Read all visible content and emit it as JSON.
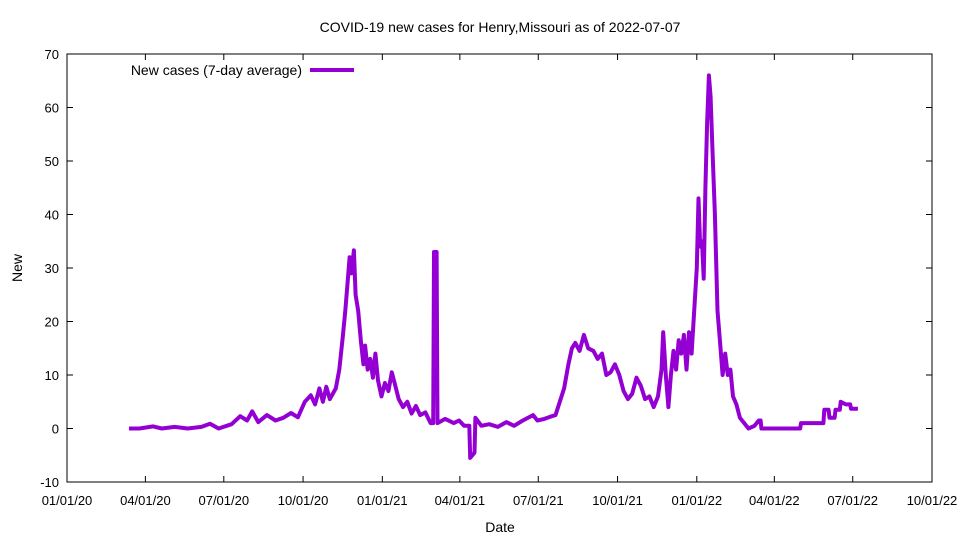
{
  "chart_data": {
    "type": "line",
    "title": "COVID-19 new cases for Henry,Missouri as of 2022-07-07",
    "xlabel": "Date",
    "ylabel": "New",
    "xlim": [
      "2020-01-01",
      "2022-10-01"
    ],
    "ylim": [
      -10,
      70
    ],
    "x_ticks": [
      {
        "date": "2020-01-01",
        "label": "01/01/20"
      },
      {
        "date": "2020-04-01",
        "label": "04/01/20"
      },
      {
        "date": "2020-07-01",
        "label": "07/01/20"
      },
      {
        "date": "2020-10-01",
        "label": "10/01/20"
      },
      {
        "date": "2021-01-01",
        "label": "01/01/21"
      },
      {
        "date": "2021-04-01",
        "label": "04/01/21"
      },
      {
        "date": "2021-07-01",
        "label": "07/01/21"
      },
      {
        "date": "2021-10-01",
        "label": "10/01/21"
      },
      {
        "date": "2022-01-01",
        "label": "01/01/22"
      },
      {
        "date": "2022-04-01",
        "label": "04/01/22"
      },
      {
        "date": "2022-07-01",
        "label": "07/01/22"
      },
      {
        "date": "2022-10-01",
        "label": "10/01/22"
      }
    ],
    "y_ticks": [
      -10,
      0,
      10,
      20,
      30,
      40,
      50,
      60,
      70
    ],
    "grid": false,
    "legend_position": "top-left",
    "series": [
      {
        "name": "New cases (7-day average)",
        "color": "#9400d3",
        "points": [
          [
            "2020-03-13",
            0.0
          ],
          [
            "2020-03-25",
            0.0
          ],
          [
            "2020-04-10",
            0.4
          ],
          [
            "2020-04-20",
            0.0
          ],
          [
            "2020-05-05",
            0.3
          ],
          [
            "2020-05-20",
            0.0
          ],
          [
            "2020-06-05",
            0.3
          ],
          [
            "2020-06-15",
            0.9
          ],
          [
            "2020-06-25",
            0.0
          ],
          [
            "2020-07-10",
            0.8
          ],
          [
            "2020-07-20",
            2.3
          ],
          [
            "2020-07-28",
            1.5
          ],
          [
            "2020-08-03",
            3.2
          ],
          [
            "2020-08-10",
            1.2
          ],
          [
            "2020-08-20",
            2.5
          ],
          [
            "2020-08-30",
            1.5
          ],
          [
            "2020-09-08",
            2.0
          ],
          [
            "2020-09-17",
            2.9
          ],
          [
            "2020-09-25",
            2.1
          ],
          [
            "2020-10-03",
            5.0
          ],
          [
            "2020-10-10",
            6.2
          ],
          [
            "2020-10-15",
            4.5
          ],
          [
            "2020-10-20",
            7.5
          ],
          [
            "2020-10-24",
            5.0
          ],
          [
            "2020-10-28",
            7.8
          ],
          [
            "2020-11-01",
            5.5
          ],
          [
            "2020-11-08",
            7.5
          ],
          [
            "2020-11-12",
            11.0
          ],
          [
            "2020-11-16",
            17.0
          ],
          [
            "2020-11-19",
            22.0
          ],
          [
            "2020-11-22",
            28.0
          ],
          [
            "2020-11-24",
            32.0
          ],
          [
            "2020-11-26",
            29.0
          ],
          [
            "2020-11-29",
            33.3
          ],
          [
            "2020-12-01",
            25.0
          ],
          [
            "2020-12-04",
            22.0
          ],
          [
            "2020-12-07",
            16.5
          ],
          [
            "2020-12-10",
            12.0
          ],
          [
            "2020-12-12",
            15.5
          ],
          [
            "2020-12-15",
            11.0
          ],
          [
            "2020-12-18",
            13.0
          ],
          [
            "2020-12-21",
            9.5
          ],
          [
            "2020-12-24",
            14.0
          ],
          [
            "2020-12-27",
            9.0
          ],
          [
            "2020-12-31",
            6.0
          ],
          [
            "2021-01-04",
            8.5
          ],
          [
            "2021-01-08",
            7.0
          ],
          [
            "2021-01-12",
            10.5
          ],
          [
            "2021-01-16",
            8.0
          ],
          [
            "2021-01-20",
            5.5
          ],
          [
            "2021-01-25",
            4.0
          ],
          [
            "2021-01-30",
            5.0
          ],
          [
            "2021-02-04",
            2.8
          ],
          [
            "2021-02-09",
            4.2
          ],
          [
            "2021-02-14",
            2.5
          ],
          [
            "2021-02-20",
            3.0
          ],
          [
            "2021-02-26",
            1.0
          ],
          [
            "2021-03-01",
            1.0
          ],
          [
            "2021-03-02",
            33.0
          ],
          [
            "2021-03-05",
            33.0
          ],
          [
            "2021-03-06",
            1.0
          ],
          [
            "2021-03-15",
            1.8
          ],
          [
            "2021-03-25",
            1.0
          ],
          [
            "2021-03-31",
            1.5
          ],
          [
            "2021-04-06",
            0.5
          ],
          [
            "2021-04-12",
            0.5
          ],
          [
            "2021-04-13",
            -5.5
          ],
          [
            "2021-04-18",
            -4.5
          ],
          [
            "2021-04-19",
            2.0
          ],
          [
            "2021-04-26",
            0.5
          ],
          [
            "2021-05-05",
            0.8
          ],
          [
            "2021-05-15",
            0.3
          ],
          [
            "2021-05-25",
            1.2
          ],
          [
            "2021-06-03",
            0.5
          ],
          [
            "2021-06-13",
            1.5
          ],
          [
            "2021-06-25",
            2.5
          ],
          [
            "2021-06-30",
            1.5
          ],
          [
            "2021-07-08",
            1.8
          ],
          [
            "2021-07-15",
            2.2
          ],
          [
            "2021-07-21",
            2.5
          ],
          [
            "2021-07-26",
            5.0
          ],
          [
            "2021-07-31",
            7.5
          ],
          [
            "2021-08-05",
            12.0
          ],
          [
            "2021-08-09",
            15.0
          ],
          [
            "2021-08-13",
            16.0
          ],
          [
            "2021-08-18",
            14.5
          ],
          [
            "2021-08-23",
            17.5
          ],
          [
            "2021-08-28",
            15.0
          ],
          [
            "2021-09-03",
            14.5
          ],
          [
            "2021-09-08",
            13.0
          ],
          [
            "2021-09-13",
            14.0
          ],
          [
            "2021-09-18",
            10.0
          ],
          [
            "2021-09-23",
            10.5
          ],
          [
            "2021-09-28",
            12.0
          ],
          [
            "2021-10-03",
            10.0
          ],
          [
            "2021-10-08",
            7.0
          ],
          [
            "2021-10-13",
            5.5
          ],
          [
            "2021-10-18",
            6.5
          ],
          [
            "2021-10-23",
            9.5
          ],
          [
            "2021-10-28",
            8.0
          ],
          [
            "2021-11-02",
            5.5
          ],
          [
            "2021-11-07",
            6.0
          ],
          [
            "2021-11-12",
            4.0
          ],
          [
            "2021-11-17",
            6.0
          ],
          [
            "2021-11-21",
            11.0
          ],
          [
            "2021-11-23",
            18.0
          ],
          [
            "2021-11-26",
            10.0
          ],
          [
            "2021-11-29",
            4.0
          ],
          [
            "2021-12-02",
            10.0
          ],
          [
            "2021-12-05",
            14.5
          ],
          [
            "2021-12-08",
            11.0
          ],
          [
            "2021-12-11",
            16.5
          ],
          [
            "2021-12-14",
            14.0
          ],
          [
            "2021-12-17",
            17.5
          ],
          [
            "2021-12-20",
            11.0
          ],
          [
            "2021-12-23",
            18.0
          ],
          [
            "2021-12-26",
            14.0
          ],
          [
            "2021-12-29",
            22.0
          ],
          [
            "2022-01-01",
            30.0
          ],
          [
            "2022-01-03",
            43.0
          ],
          [
            "2022-01-05",
            34.0
          ],
          [
            "2022-01-07",
            35.0
          ],
          [
            "2022-01-09",
            28.0
          ],
          [
            "2022-01-11",
            45.0
          ],
          [
            "2022-01-13",
            57.0
          ],
          [
            "2022-01-15",
            66.0
          ],
          [
            "2022-01-17",
            62.0
          ],
          [
            "2022-01-19",
            53.0
          ],
          [
            "2022-01-22",
            40.0
          ],
          [
            "2022-01-25",
            22.0
          ],
          [
            "2022-01-28",
            16.0
          ],
          [
            "2022-01-31",
            10.0
          ],
          [
            "2022-02-03",
            14.0
          ],
          [
            "2022-02-06",
            10.0
          ],
          [
            "2022-02-09",
            11.0
          ],
          [
            "2022-02-12",
            6.0
          ],
          [
            "2022-02-16",
            4.5
          ],
          [
            "2022-02-20",
            2.0
          ],
          [
            "2022-02-25",
            1.0
          ],
          [
            "2022-03-02",
            0.0
          ],
          [
            "2022-03-09",
            0.5
          ],
          [
            "2022-03-14",
            1.5
          ],
          [
            "2022-03-16",
            1.5
          ],
          [
            "2022-03-17",
            0.0
          ],
          [
            "2022-05-01",
            0.0
          ],
          [
            "2022-05-02",
            1.0
          ],
          [
            "2022-05-28",
            1.0
          ],
          [
            "2022-05-29",
            3.5
          ],
          [
            "2022-06-03",
            3.5
          ],
          [
            "2022-06-04",
            2.0
          ],
          [
            "2022-06-10",
            2.0
          ],
          [
            "2022-06-11",
            3.5
          ],
          [
            "2022-06-16",
            3.5
          ],
          [
            "2022-06-17",
            5.0
          ],
          [
            "2022-06-23",
            4.5
          ],
          [
            "2022-06-28",
            4.5
          ],
          [
            "2022-06-29",
            3.7
          ],
          [
            "2022-07-07",
            3.7
          ]
        ]
      }
    ]
  }
}
